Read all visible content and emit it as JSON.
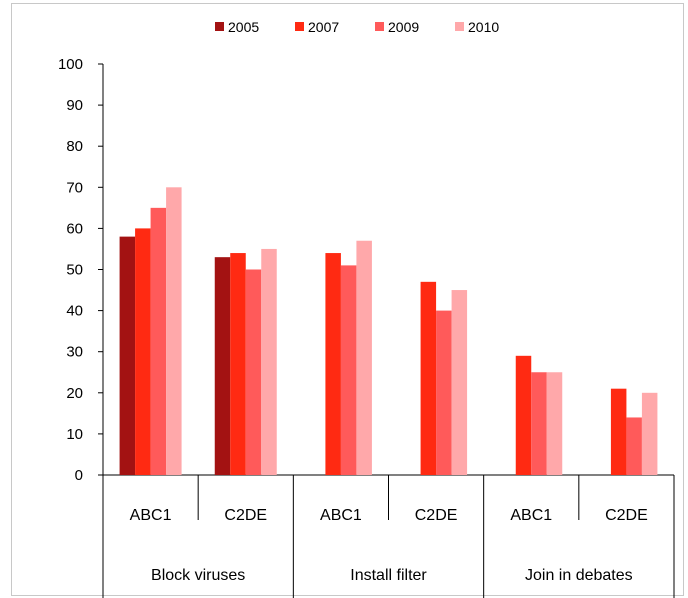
{
  "chart_data": {
    "type": "bar",
    "title": "",
    "xlabel": "",
    "ylabel": "",
    "ylim": [
      0,
      100
    ],
    "yticks": [
      0,
      10,
      20,
      30,
      40,
      50,
      60,
      70,
      80,
      90,
      100
    ],
    "grid": false,
    "legend_position": "top",
    "categories": [
      "ABC1",
      "C2DE",
      "ABC1",
      "C2DE",
      "ABC1",
      "C2DE"
    ],
    "groups": [
      {
        "label": "Block viruses",
        "span": 2
      },
      {
        "label": "Install filter",
        "span": 2
      },
      {
        "label": "Join in debates",
        "span": 2
      }
    ],
    "series": [
      {
        "name": "2005",
        "color": "#a31212",
        "values": [
          58,
          53,
          null,
          null,
          null,
          null
        ]
      },
      {
        "name": "2007",
        "color": "#ff2a12",
        "values": [
          60,
          54,
          54,
          47,
          29,
          21
        ]
      },
      {
        "name": "2009",
        "color": "#ff5a5a",
        "values": [
          65,
          50,
          51,
          40,
          25,
          14
        ]
      },
      {
        "name": "2010",
        "color": "#ffa8aa",
        "values": [
          70,
          55,
          57,
          45,
          25,
          20
        ]
      }
    ]
  }
}
